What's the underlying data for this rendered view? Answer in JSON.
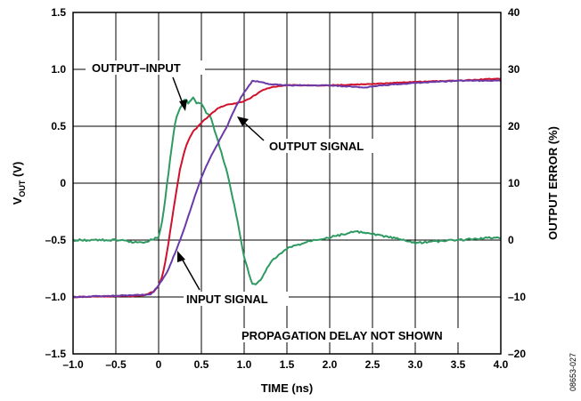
{
  "chart_data": {
    "type": "line",
    "xlabel": "TIME (ns)",
    "ylabel_main": "V",
    "ylabel_sub": "OUT",
    "ylabel_unit": " (V)",
    "y2label": "OUTPUT ERROR (%)",
    "xlim": [
      -1.0,
      4.0
    ],
    "ylim": [
      -1.5,
      1.5
    ],
    "y2lim": [
      -20,
      40
    ],
    "x_ticks": [
      "–1.0",
      "–0.5",
      "0",
      "0.5",
      "1.0",
      "1.5",
      "2.0",
      "2.5",
      "3.0",
      "3.5",
      "4.0"
    ],
    "y_ticks": [
      "–1.5",
      "–1.0",
      "–0.5",
      "0",
      "0.5",
      "1.0",
      "1.5"
    ],
    "y2_ticks": [
      "–20",
      "–10",
      "0",
      "10",
      "20",
      "30",
      "40"
    ],
    "grid": true,
    "colors": {
      "input": "#d0112b",
      "output": "#6a3aa8",
      "error": "#2e9a62"
    },
    "series": [
      {
        "key": "input",
        "axis": "left",
        "x": [
          -1.0,
          -0.2,
          -0.05,
          0.0,
          0.05,
          0.1,
          0.15,
          0.2,
          0.25,
          0.3,
          0.35,
          0.4,
          0.5,
          0.6,
          0.7,
          0.8,
          0.9,
          1.0,
          1.1,
          1.2,
          1.3,
          1.5,
          2.0,
          2.5,
          3.0,
          3.5,
          4.0
        ],
        "y": [
          -1.0,
          -0.99,
          -0.95,
          -0.9,
          -0.8,
          -0.6,
          -0.35,
          -0.1,
          0.12,
          0.28,
          0.38,
          0.45,
          0.53,
          0.6,
          0.66,
          0.69,
          0.7,
          0.72,
          0.76,
          0.81,
          0.84,
          0.86,
          0.86,
          0.87,
          0.89,
          0.9,
          0.92
        ]
      },
      {
        "key": "output",
        "axis": "left",
        "x": [
          -1.0,
          -0.1,
          0.0,
          0.1,
          0.2,
          0.3,
          0.4,
          0.5,
          0.6,
          0.7,
          0.8,
          0.9,
          1.0,
          1.1,
          1.2,
          1.3,
          1.5,
          2.0,
          2.2,
          2.4,
          2.6,
          2.8,
          3.0,
          3.5,
          4.0
        ],
        "y": [
          -1.0,
          -0.98,
          -0.9,
          -0.78,
          -0.6,
          -0.4,
          -0.17,
          0.05,
          0.22,
          0.36,
          0.5,
          0.67,
          0.8,
          0.9,
          0.89,
          0.87,
          0.86,
          0.86,
          0.85,
          0.84,
          0.86,
          0.87,
          0.88,
          0.9,
          0.9
        ]
      },
      {
        "key": "error",
        "axis": "right",
        "x": [
          -1.0,
          -0.5,
          -0.2,
          0.0,
          0.05,
          0.1,
          0.15,
          0.2,
          0.25,
          0.3,
          0.35,
          0.4,
          0.45,
          0.5,
          0.55,
          0.6,
          0.7,
          0.8,
          0.9,
          1.0,
          1.1,
          1.2,
          1.3,
          1.5,
          1.8,
          2.0,
          2.3,
          2.5,
          2.7,
          3.0,
          3.5,
          4.0
        ],
        "y": [
          0.0,
          0.0,
          -0.5,
          0.5,
          4.0,
          10.0,
          16.0,
          21.5,
          23.0,
          25.0,
          24.0,
          25.0,
          24.0,
          24.0,
          22.5,
          22.0,
          17.0,
          12.0,
          5.0,
          -3.0,
          -8.0,
          -7.0,
          -4.0,
          -1.5,
          0.0,
          0.5,
          1.5,
          1.0,
          0.5,
          -0.5,
          0.0,
          0.5
        ]
      }
    ],
    "annotations": {
      "output_input": "OUTPUT–INPUT",
      "output_signal": "OUTPUT SIGNAL",
      "input_signal": "INPUT SIGNAL",
      "note": "PROPAGATION DELAY NOT SHOWN"
    },
    "figure_id": "08653-027"
  }
}
